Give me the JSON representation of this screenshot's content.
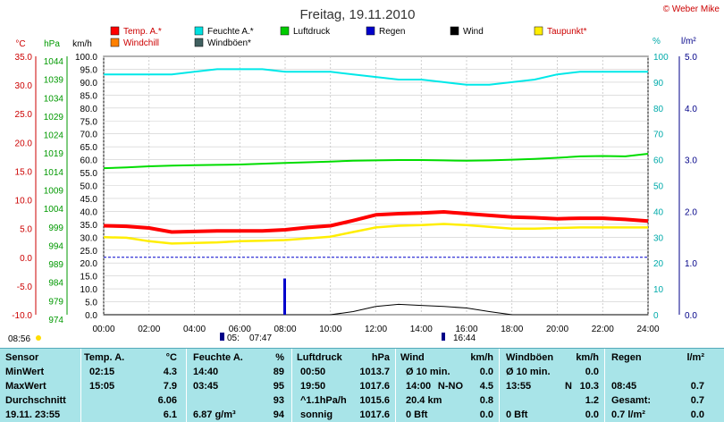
{
  "title": "Freitag, 19.11.2010",
  "copyright": "© Weber Mike",
  "legend": [
    {
      "label": "Temp. A.*",
      "color": "#ff0000"
    },
    {
      "label": "Feuchte A.*",
      "color": "#00e0e0"
    },
    {
      "label": "Luftdruck",
      "color": "#00cc00"
    },
    {
      "label": "Regen",
      "color": "#0000cc"
    },
    {
      "label": "Wind",
      "color": "#000000"
    },
    {
      "label": "Taupunkt*",
      "color": "#ffee00"
    },
    {
      "label": "Windchill",
      "color": "#ff8000"
    },
    {
      "label": "Windböen*",
      "color": "#406060"
    }
  ],
  "axes": {
    "temp_unit": "°C",
    "press_unit": "hPa",
    "wind_unit": "km/h",
    "hum_unit": "%",
    "rain_unit": "l/m²",
    "temp_ticks": [
      "35.0",
      "30.0",
      "25.0",
      "20.0",
      "15.0",
      "10.0",
      "5.0",
      "0.0",
      "-5.0",
      "-10.0"
    ],
    "press_ticks": [
      "1044",
      "1039",
      "1034",
      "1029",
      "1024",
      "1019",
      "1014",
      "1009",
      "1004",
      "999",
      "994",
      "989",
      "984",
      "979",
      "974"
    ],
    "wind_ticks": [
      "100.0",
      "95.0",
      "90.0",
      "85.0",
      "80.0",
      "75.0",
      "70.0",
      "65.0",
      "60.0",
      "55.0",
      "50.0",
      "45.0",
      "40.0",
      "35.0",
      "30.0",
      "25.0",
      "20.0",
      "15.0",
      "10.0",
      "5.0",
      "0.0"
    ],
    "hum_ticks": [
      "100",
      "90",
      "80",
      "70",
      "60",
      "50",
      "40",
      "30",
      "20",
      "10",
      "0"
    ],
    "rain_ticks": [
      "5.0",
      "4.0",
      "3.0",
      "2.0",
      "1.0",
      "0.0"
    ],
    "x_ticks": [
      "00:00",
      "02:00",
      "04:00",
      "06:00",
      "08:00",
      "10:00",
      "12:00",
      "14:00",
      "16:00",
      "18:00",
      "20:00",
      "22:00",
      "24:00"
    ]
  },
  "sun": {
    "sunrise": "07:47",
    "sunset": "16:44",
    "left_time": "08:56",
    "mid_label": "05:"
  },
  "chart_data": {
    "type": "line",
    "x": [
      0,
      1,
      2,
      3,
      4,
      5,
      6,
      7,
      8,
      9,
      10,
      11,
      12,
      13,
      14,
      15,
      16,
      17,
      18,
      19,
      20,
      21,
      22,
      23,
      24
    ],
    "ylim_wind": [
      0,
      100
    ],
    "series": [
      {
        "name": "Temp. A.*",
        "axis": "temp",
        "values": [
          5.5,
          5.4,
          5.1,
          4.4,
          4.5,
          4.6,
          4.6,
          4.6,
          4.8,
          5.2,
          5.5,
          6.4,
          7.4,
          7.6,
          7.7,
          7.9,
          7.6,
          7.3,
          7.0,
          6.9,
          6.7,
          6.8,
          6.8,
          6.6,
          6.3
        ]
      },
      {
        "name": "Feuchte A.*",
        "axis": "hum",
        "values": [
          93,
          93,
          93,
          93,
          94,
          95,
          95,
          95,
          94,
          94,
          94,
          93,
          92,
          91,
          91,
          90,
          89,
          89,
          90,
          91,
          93,
          94,
          94,
          94,
          94
        ]
      },
      {
        "name": "Luftdruck",
        "axis": "press",
        "values": [
          1013.7,
          1013.9,
          1014.2,
          1014.4,
          1014.5,
          1014.6,
          1014.7,
          1014.9,
          1015.1,
          1015.3,
          1015.5,
          1015.7,
          1015.8,
          1015.9,
          1015.9,
          1015.8,
          1015.7,
          1015.8,
          1016.0,
          1016.2,
          1016.5,
          1016.9,
          1017.0,
          1016.9,
          1017.6
        ]
      },
      {
        "name": "Taupunkt*",
        "axis": "temp",
        "values": [
          3.5,
          3.4,
          2.8,
          2.4,
          2.5,
          2.6,
          2.8,
          2.9,
          3.0,
          3.3,
          3.6,
          4.4,
          5.2,
          5.5,
          5.6,
          5.8,
          5.6,
          5.3,
          5.0,
          5.0,
          5.1,
          5.2,
          5.2,
          5.2,
          5.2
        ]
      },
      {
        "name": "Wind",
        "axis": "wind",
        "values": [
          0,
          0,
          0,
          0,
          0,
          0,
          0,
          0,
          0,
          0,
          0,
          1.2,
          3.2,
          4.0,
          3.6,
          3.2,
          2.6,
          1.2,
          0,
          0,
          0,
          0,
          0,
          0,
          0
        ]
      },
      {
        "name": "Regen",
        "axis": "rain",
        "values": [
          0,
          0,
          0,
          0,
          0,
          0,
          0,
          0,
          0.7,
          0,
          0,
          0,
          0,
          0,
          0,
          0,
          0,
          0,
          0,
          0,
          0,
          0,
          0,
          0,
          0
        ]
      }
    ]
  },
  "table": {
    "headers": [
      "Sensor",
      "Temp. A.",
      "°C",
      "Feuchte A.",
      "%",
      "Luftdruck",
      "hPa",
      "Wind",
      "km/h",
      "Windböen",
      "km/h",
      "Regen",
      "l/m²"
    ],
    "rows": [
      [
        "MinWert",
        "02:15",
        "4.3",
        "14:40",
        "89",
        "00:50",
        "1013.7",
        "Ø 10 min.",
        "",
        "0.0",
        "Ø 10 min.",
        "",
        "0.0",
        "",
        "",
        ""
      ],
      [
        "MaxWert",
        "15:05",
        "7.9",
        "03:45",
        "95",
        "19:50",
        "1017.6",
        "14:00",
        "N-NO",
        "4.5",
        "13:55",
        "N",
        "10.3",
        "08:45",
        "",
        "0.7"
      ],
      [
        "Durchschnitt",
        "",
        "6.06",
        "",
        "93",
        "^1.1hPa/h",
        "1015.6",
        "20.4 km",
        "",
        "0.8",
        "",
        "",
        "1.2",
        "Gesamt:",
        "",
        "0.7"
      ],
      [
        "19.11. 23:55",
        "",
        "6.1",
        "6.87 g/m³",
        "94",
        "sonnig",
        "1017.6",
        "0 Bft",
        "",
        "0.0",
        "0 Bft",
        "",
        "0.0",
        "0.7 l/m²",
        "",
        "0.0"
      ]
    ]
  }
}
